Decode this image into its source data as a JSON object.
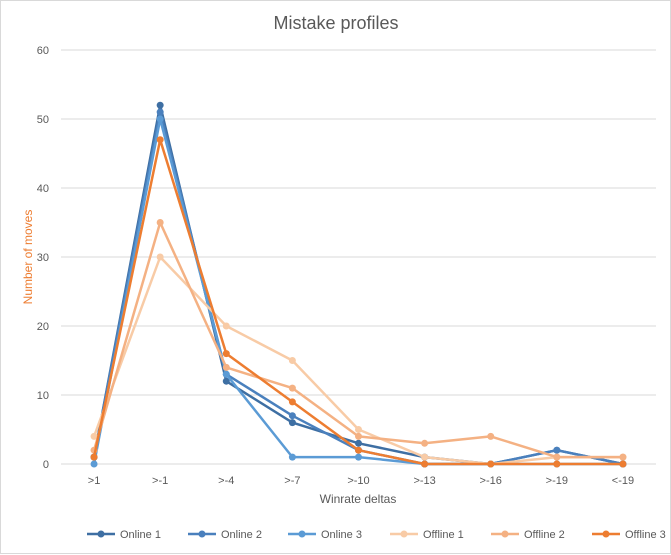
{
  "chart_data": {
    "type": "line",
    "title": "Mistake profiles",
    "xlabel": "Winrate deltas",
    "ylabel": "Number  of moves",
    "categories": [
      ">1",
      ">-1",
      ">-4",
      ">-7",
      ">-10",
      ">-13",
      ">-16",
      ">-19",
      "<-19"
    ],
    "ylim": [
      0,
      60
    ],
    "yticks": [
      0,
      10,
      20,
      30,
      40,
      50,
      60
    ],
    "grid": true,
    "legend": "bottom",
    "series": [
      {
        "name": "Online 1",
        "color": "#3e6fa3",
        "values": [
          1,
          52,
          12,
          6,
          3,
          1,
          0,
          2,
          0
        ]
      },
      {
        "name": "Online 2",
        "color": "#4a80bd",
        "values": [
          1,
          51,
          13,
          7,
          2,
          0,
          0,
          2,
          0
        ]
      },
      {
        "name": "Online 3",
        "color": "#5b9bd5",
        "values": [
          0,
          50,
          13,
          1,
          1,
          0,
          0,
          0,
          0
        ]
      },
      {
        "name": "Offline 1",
        "color": "#f8cba6",
        "values": [
          4,
          30,
          20,
          15,
          5,
          1,
          0,
          1,
          1
        ]
      },
      {
        "name": "Offline 2",
        "color": "#f4b183",
        "values": [
          2,
          35,
          14,
          11,
          4,
          3,
          4,
          1,
          1
        ]
      },
      {
        "name": "Offline 3",
        "color": "#ed7d31",
        "values": [
          1,
          47,
          16,
          9,
          2,
          0,
          0,
          0,
          0
        ]
      }
    ]
  }
}
